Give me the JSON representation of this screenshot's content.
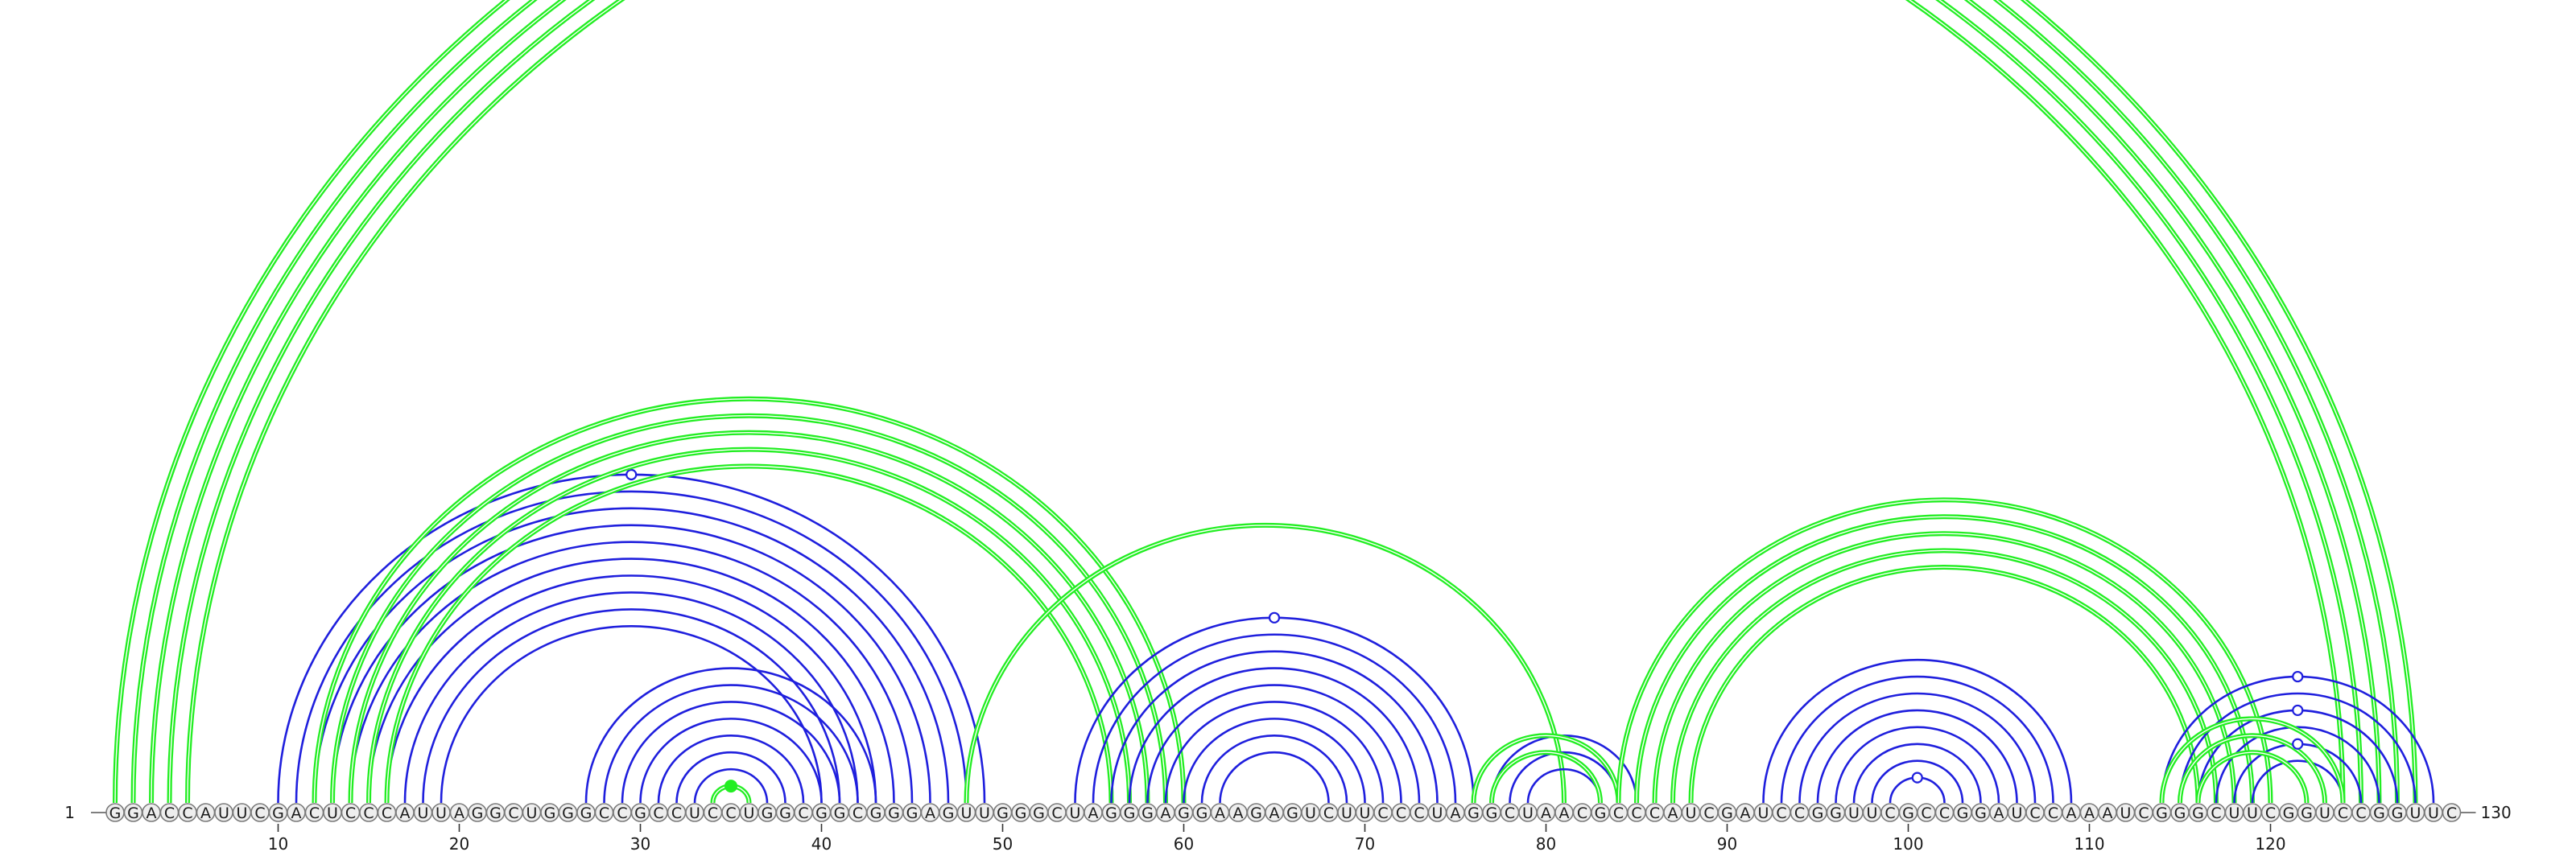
{
  "sequence": "GGACCAUUCGACUCCCAUUAGGCUGGGCCGCCUCCUGGCGGCGGGAGUUGGGCUAGGGAGGAAGAGUCUUCCCUAGGCUAACGCCCAUCGAUCCGGUUCGCCGGAUCCAAAUCGGGCUUCGGUCCGGUUC",
  "start_label": "1",
  "end_label": "130",
  "tick_positions": [
    10,
    20,
    30,
    40,
    50,
    60,
    70,
    80,
    90,
    100,
    110,
    120
  ],
  "tick_labels": [
    "10",
    "20",
    "30",
    "40",
    "50",
    "60",
    "70",
    "80",
    "90",
    "100",
    "110",
    "120"
  ],
  "colors": {
    "blue": "#1f1fdd",
    "green": "#22ee22"
  },
  "arc_groups": [
    {
      "color": "blue",
      "pairs": [
        [
          10,
          49
        ],
        [
          11,
          48
        ],
        [
          12,
          47
        ],
        [
          13,
          46
        ],
        [
          14,
          45
        ],
        [
          15,
          44
        ],
        [
          16,
          43
        ],
        [
          17,
          42
        ],
        [
          18,
          41
        ],
        [
          19,
          40
        ]
      ],
      "marker": "open-circle"
    },
    {
      "color": "green",
      "pairs": [
        [
          12,
          60
        ],
        [
          13,
          59
        ],
        [
          14,
          58
        ],
        [
          15,
          57
        ],
        [
          16,
          56
        ]
      ]
    },
    {
      "color": "blue",
      "pairs": [
        [
          27,
          43
        ],
        [
          28,
          42
        ],
        [
          29,
          41
        ],
        [
          30,
          40
        ],
        [
          31,
          39
        ],
        [
          32,
          38
        ],
        [
          33,
          37
        ]
      ]
    },
    {
      "color": "green",
      "pairs": [
        [
          34,
          36
        ]
      ],
      "marker": "filled-dot"
    },
    {
      "color": "green",
      "pairs": [
        [
          48,
          81
        ]
      ]
    },
    {
      "color": "blue",
      "pairs": [
        [
          54,
          76
        ],
        [
          55,
          75
        ],
        [
          56,
          74
        ],
        [
          57,
          73
        ],
        [
          58,
          72
        ],
        [
          59,
          71
        ],
        [
          60,
          70
        ],
        [
          61,
          69
        ],
        [
          62,
          68
        ]
      ],
      "marker": "open-circle"
    },
    {
      "color": "green",
      "pairs": [
        [
          1,
          128
        ],
        [
          2,
          127
        ],
        [
          3,
          126
        ],
        [
          4,
          125
        ],
        [
          5,
          124
        ]
      ]
    },
    {
      "color": "blue",
      "pairs": [
        [
          77,
          85
        ],
        [
          78,
          84
        ],
        [
          79,
          83
        ]
      ]
    },
    {
      "color": "green",
      "pairs": [
        [
          76,
          84
        ],
        [
          77,
          83
        ]
      ]
    },
    {
      "color": "green",
      "pairs": [
        [
          84,
          120
        ],
        [
          85,
          119
        ],
        [
          86,
          118
        ],
        [
          87,
          117
        ],
        [
          88,
          116
        ]
      ]
    },
    {
      "color": "blue",
      "pairs": [
        [
          92,
          109
        ],
        [
          93,
          108
        ],
        [
          94,
          107
        ],
        [
          95,
          106
        ],
        [
          96,
          105
        ],
        [
          97,
          104
        ],
        [
          98,
          103
        ],
        [
          99,
          102
        ]
      ]
    },
    {
      "color": "blue",
      "pairs": [
        [
          114,
          129
        ],
        [
          115,
          128
        ],
        [
          116,
          127
        ],
        [
          117,
          126
        ],
        [
          118,
          125
        ],
        [
          119,
          124
        ]
      ],
      "marker": "open-circle"
    },
    {
      "color": "green",
      "pairs": [
        [
          114,
          124
        ],
        [
          115,
          123
        ],
        [
          116,
          122
        ]
      ]
    }
  ]
}
